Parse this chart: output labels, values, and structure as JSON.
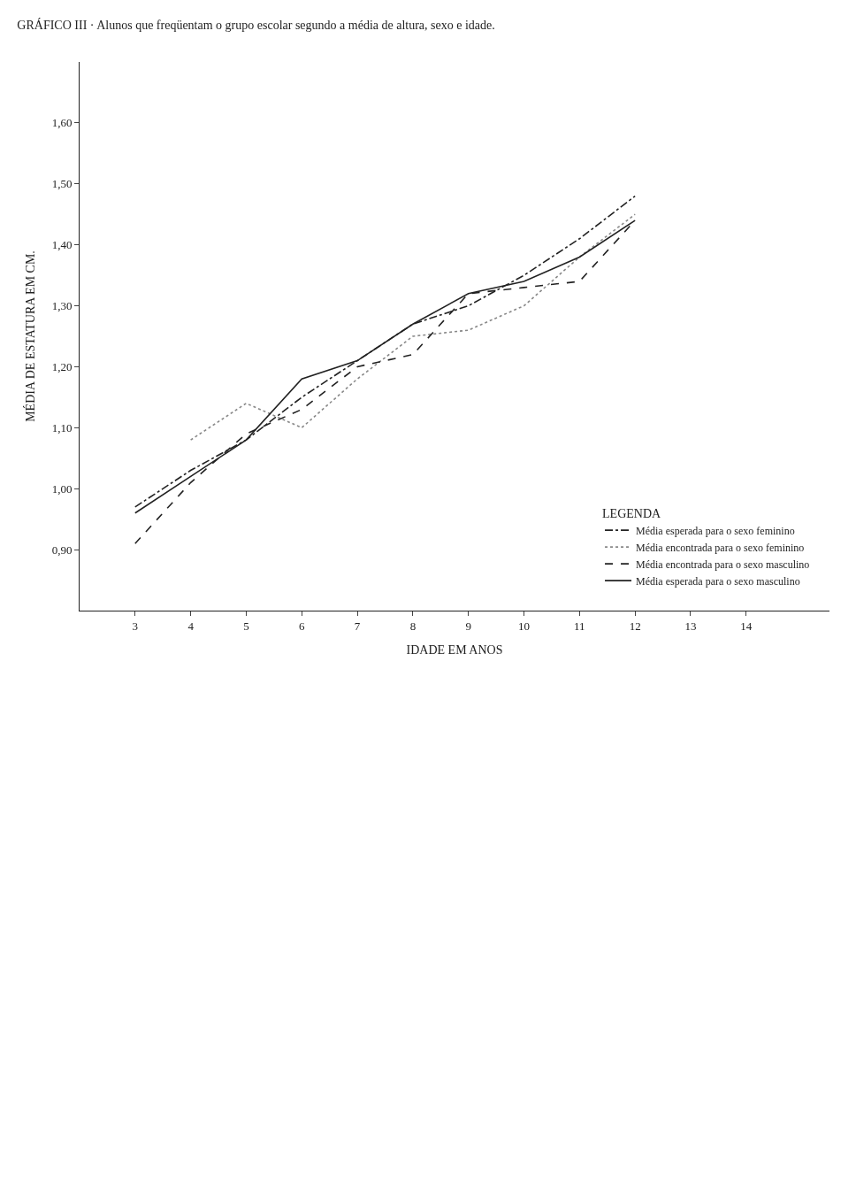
{
  "chart_data": {
    "type": "line",
    "title": "GRÁFICO III · Alunos que freqüentam o grupo escolar segundo a média de altura, sexo e idade.",
    "xlabel": "IDADE EM ANOS",
    "ylabel": "MÉDIA DE ESTATURA EM CM.",
    "legend_title": "LEGENDA",
    "x": [
      3,
      4,
      5,
      6,
      7,
      8,
      9,
      10,
      11,
      12
    ],
    "series": [
      {
        "name": "Média esperada para o sexo feminino",
        "color": "#222222",
        "line_style": "dashdot",
        "values": [
          0.97,
          1.03,
          1.08,
          1.15,
          1.21,
          1.27,
          1.3,
          1.35,
          1.41,
          1.48
        ]
      },
      {
        "name": "Média encontrada para o sexo feminino",
        "color": "#888888",
        "line_style": "dotted",
        "values": [
          null,
          1.08,
          1.14,
          1.1,
          1.18,
          1.25,
          1.26,
          1.3,
          1.38,
          1.45
        ]
      },
      {
        "name": "Média encontrada para o sexo masculino",
        "color": "#222222",
        "line_style": "dashed",
        "values": [
          0.91,
          1.01,
          1.09,
          1.13,
          1.2,
          1.22,
          1.32,
          1.33,
          1.34,
          1.44
        ]
      },
      {
        "name": "Média esperada para o sexo masculino",
        "color": "#222222",
        "line_style": "solid",
        "values": [
          0.96,
          1.02,
          1.08,
          1.18,
          1.21,
          1.27,
          1.32,
          1.34,
          1.38,
          1.44
        ]
      }
    ],
    "xlim": [
      2,
      15.5
    ],
    "xticks": [
      3,
      4,
      5,
      6,
      7,
      8,
      9,
      10,
      11,
      12,
      13,
      14
    ],
    "ylim": [
      0.8,
      1.7
    ],
    "yticks": [
      {
        "value": 0.9,
        "label": "0,90"
      },
      {
        "value": 1.0,
        "label": "1,00"
      },
      {
        "value": 1.1,
        "label": "1,10"
      },
      {
        "value": 1.2,
        "label": "1,20"
      },
      {
        "value": 1.3,
        "label": "1,30"
      },
      {
        "value": 1.4,
        "label": "1,40"
      },
      {
        "value": 1.5,
        "label": "1,50"
      },
      {
        "value": 1.6,
        "label": "1,60"
      }
    ],
    "grid": false,
    "legend": "bottom right",
    "marker": "none"
  }
}
